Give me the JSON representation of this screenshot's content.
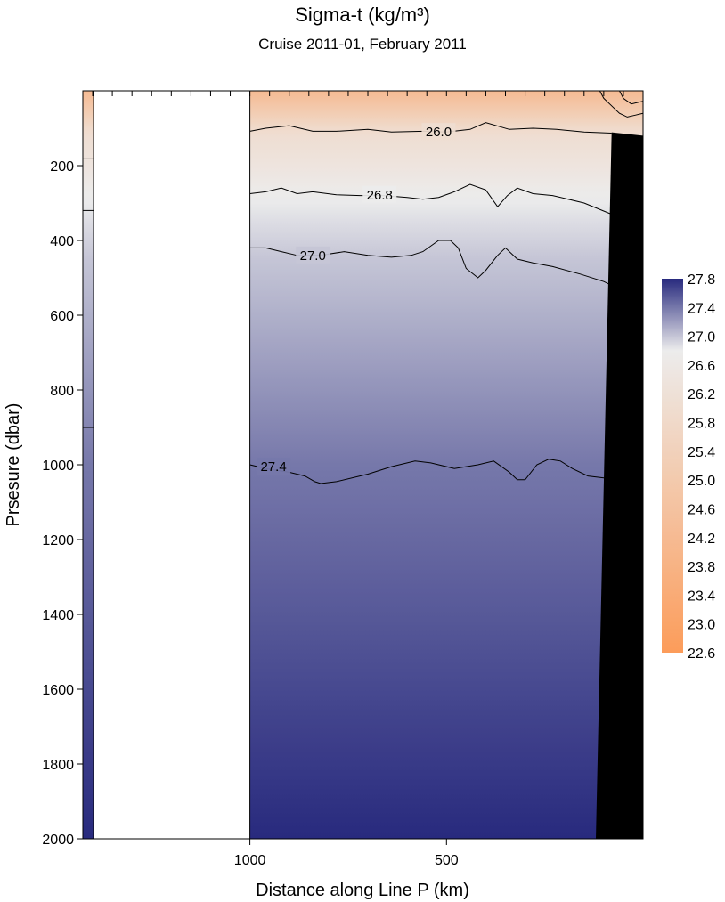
{
  "chart_data": {
    "type": "heatmap",
    "title": "Sigma-t  (kg/m³)",
    "subtitle": "Cruise 2011-01,  February 2011",
    "xlabel": "Distance along Line P  (km)",
    "ylabel": "Prsesure  (dbar)",
    "x_axis": {
      "reversed": true,
      "lim": [
        1425,
        0
      ],
      "ticks": [
        1000,
        500
      ],
      "tick_labels": [
        "1000",
        "500"
      ]
    },
    "y_axis": {
      "reversed": true,
      "lim": [
        0,
        2000
      ],
      "ticks": [
        200,
        400,
        600,
        800,
        1000,
        1200,
        1400,
        1600,
        1800,
        2000
      ],
      "tick_labels": [
        "200",
        "400",
        "600",
        "800",
        "1000",
        "1200",
        "1400",
        "1600",
        "1800",
        "2000"
      ]
    },
    "no_data_region_x": [
      1425,
      1000
    ],
    "colorbar": {
      "ticks": [
        27.8,
        27.4,
        27.0,
        26.6,
        26.2,
        25.8,
        25.4,
        25.0,
        24.6,
        24.2,
        23.8,
        23.4,
        23.0,
        22.6
      ],
      "tick_labels": [
        "27.8",
        "27.4",
        "27.0",
        "26.6",
        "26.2",
        "25.8",
        "25.4",
        "25.0",
        "24.6",
        "24.2",
        "23.8",
        "23.4",
        "23.0",
        "22.6"
      ],
      "range": [
        22.6,
        27.8
      ],
      "colors": {
        "low": "#fc9c5a",
        "mid": "#ececec",
        "high": "#282a7e"
      }
    },
    "left_profile_boundaries_dbar": [
      180,
      320,
      900
    ],
    "contours": [
      {
        "level": 26.0,
        "label": "26.0",
        "label_at": [
          520,
          110
        ],
        "points": [
          [
            1000,
            108
          ],
          [
            960,
            100
          ],
          [
            900,
            93
          ],
          [
            840,
            108
          ],
          [
            780,
            108
          ],
          [
            700,
            103
          ],
          [
            640,
            110
          ],
          [
            560,
            108
          ],
          [
            500,
            110
          ],
          [
            440,
            103
          ],
          [
            400,
            85
          ],
          [
            340,
            103
          ],
          [
            280,
            100
          ],
          [
            220,
            103
          ],
          [
            150,
            110
          ],
          [
            80,
            113
          ]
        ]
      },
      {
        "level": 26.8,
        "label": "26.8",
        "label_at": [
          670,
          278
        ],
        "points": [
          [
            1000,
            275
          ],
          [
            960,
            270
          ],
          [
            920,
            260
          ],
          [
            880,
            275
          ],
          [
            840,
            270
          ],
          [
            780,
            278
          ],
          [
            720,
            280
          ],
          [
            660,
            280
          ],
          [
            600,
            285
          ],
          [
            560,
            290
          ],
          [
            520,
            285
          ],
          [
            480,
            270
          ],
          [
            440,
            250
          ],
          [
            400,
            265
          ],
          [
            370,
            310
          ],
          [
            345,
            280
          ],
          [
            320,
            260
          ],
          [
            280,
            275
          ],
          [
            230,
            280
          ],
          [
            150,
            300
          ],
          [
            80,
            330
          ]
        ]
      },
      {
        "level": 27.0,
        "label": "27.0",
        "label_at": [
          840,
          440
        ],
        "points": [
          [
            1000,
            420
          ],
          [
            960,
            420
          ],
          [
            920,
            430
          ],
          [
            880,
            440
          ],
          [
            820,
            440
          ],
          [
            760,
            430
          ],
          [
            700,
            440
          ],
          [
            640,
            445
          ],
          [
            590,
            440
          ],
          [
            560,
            430
          ],
          [
            520,
            400
          ],
          [
            490,
            400
          ],
          [
            470,
            420
          ],
          [
            450,
            475
          ],
          [
            420,
            500
          ],
          [
            400,
            480
          ],
          [
            370,
            440
          ],
          [
            350,
            420
          ],
          [
            320,
            450
          ],
          [
            280,
            460
          ],
          [
            230,
            470
          ],
          [
            160,
            490
          ],
          [
            100,
            510
          ],
          [
            80,
            520
          ]
        ]
      },
      {
        "level": 27.4,
        "label": "27.4",
        "label_at": [
          940,
          1005
        ],
        "points": [
          [
            1000,
            1000
          ],
          [
            960,
            1010
          ],
          [
            900,
            1020
          ],
          [
            860,
            1030
          ],
          [
            835,
            1045
          ],
          [
            820,
            1050
          ],
          [
            780,
            1045
          ],
          [
            700,
            1025
          ],
          [
            640,
            1005
          ],
          [
            580,
            990
          ],
          [
            540,
            995
          ],
          [
            480,
            1010
          ],
          [
            420,
            1000
          ],
          [
            380,
            990
          ],
          [
            340,
            1020
          ],
          [
            320,
            1040
          ],
          [
            300,
            1040
          ],
          [
            270,
            1000
          ],
          [
            240,
            985
          ],
          [
            210,
            990
          ],
          [
            180,
            1010
          ],
          [
            140,
            1030
          ],
          [
            100,
            1035
          ],
          [
            80,
            1045
          ]
        ]
      },
      {
        "level": 24.6,
        "label": "",
        "label_at": null,
        "points": [
          [
            110,
            0
          ],
          [
            100,
            20
          ],
          [
            80,
            40
          ],
          [
            60,
            60
          ],
          [
            40,
            70
          ],
          [
            20,
            65
          ],
          [
            0,
            60
          ]
        ]
      },
      {
        "level": 24.2,
        "label": "",
        "label_at": null,
        "points": [
          [
            60,
            0
          ],
          [
            50,
            20
          ],
          [
            30,
            35
          ],
          [
            10,
            30
          ],
          [
            0,
            28
          ]
        ]
      }
    ],
    "bathymetry": [
      [
        120,
        2000
      ],
      [
        80,
        111
      ],
      [
        0,
        120
      ],
      [
        0,
        2000
      ]
    ],
    "legend": "colorbar-right",
    "grid": false
  }
}
